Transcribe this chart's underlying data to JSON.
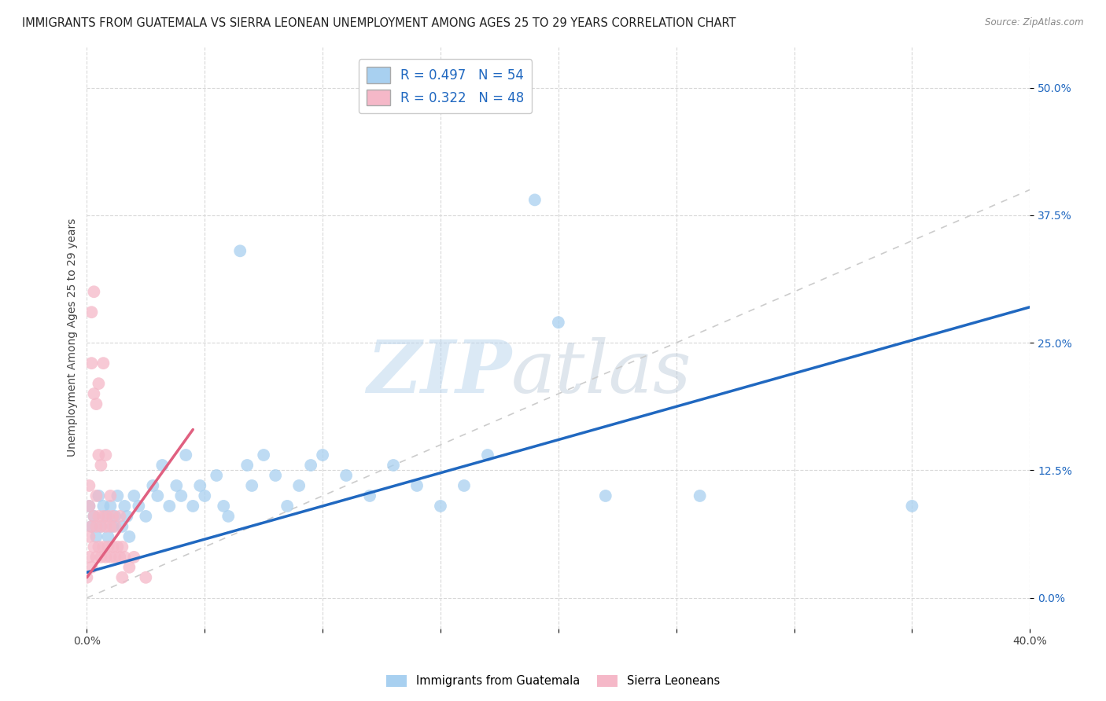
{
  "title": "IMMIGRANTS FROM GUATEMALA VS SIERRA LEONEAN UNEMPLOYMENT AMONG AGES 25 TO 29 YEARS CORRELATION CHART",
  "source": "Source: ZipAtlas.com",
  "ylabel": "Unemployment Among Ages 25 to 29 years",
  "xlim": [
    0.0,
    0.4
  ],
  "ylim": [
    -0.03,
    0.54
  ],
  "yticks": [
    0.0,
    0.125,
    0.25,
    0.375,
    0.5
  ],
  "ytick_labels": [
    "0.0%",
    "12.5%",
    "25.0%",
    "37.5%",
    "50.0%"
  ],
  "xticks": [
    0.0,
    0.05,
    0.1,
    0.15,
    0.2,
    0.25,
    0.3,
    0.35,
    0.4
  ],
  "xtick_labels": [
    "0.0%",
    "",
    "",
    "",
    "",
    "",
    "",
    "",
    "40.0%"
  ],
  "r_blue": 0.497,
  "n_blue": 54,
  "r_pink": 0.322,
  "n_pink": 48,
  "legend_label_blue": "Immigrants from Guatemala",
  "legend_label_pink": "Sierra Leoneans",
  "watermark_zip": "ZIP",
  "watermark_atlas": "atlas",
  "color_blue": "#a8d0f0",
  "color_pink": "#f5b8c8",
  "color_blue_line": "#2068c0",
  "color_pink_line": "#e06080",
  "color_diag": "#cccccc",
  "background_color": "#ffffff",
  "title_fontsize": 10.5,
  "axis_label_fontsize": 10,
  "tick_fontsize": 10,
  "legend_fontsize": 12,
  "scatter_blue": [
    [
      0.001,
      0.09
    ],
    [
      0.002,
      0.07
    ],
    [
      0.003,
      0.08
    ],
    [
      0.004,
      0.06
    ],
    [
      0.005,
      0.1
    ],
    [
      0.006,
      0.07
    ],
    [
      0.007,
      0.09
    ],
    [
      0.008,
      0.08
    ],
    [
      0.009,
      0.06
    ],
    [
      0.01,
      0.09
    ],
    [
      0.011,
      0.07
    ],
    [
      0.012,
      0.08
    ],
    [
      0.013,
      0.1
    ],
    [
      0.015,
      0.07
    ],
    [
      0.016,
      0.09
    ],
    [
      0.017,
      0.08
    ],
    [
      0.018,
      0.06
    ],
    [
      0.02,
      0.1
    ],
    [
      0.022,
      0.09
    ],
    [
      0.025,
      0.08
    ],
    [
      0.028,
      0.11
    ],
    [
      0.03,
      0.1
    ],
    [
      0.032,
      0.13
    ],
    [
      0.035,
      0.09
    ],
    [
      0.038,
      0.11
    ],
    [
      0.04,
      0.1
    ],
    [
      0.042,
      0.14
    ],
    [
      0.045,
      0.09
    ],
    [
      0.048,
      0.11
    ],
    [
      0.05,
      0.1
    ],
    [
      0.055,
      0.12
    ],
    [
      0.058,
      0.09
    ],
    [
      0.06,
      0.08
    ],
    [
      0.065,
      0.34
    ],
    [
      0.068,
      0.13
    ],
    [
      0.07,
      0.11
    ],
    [
      0.075,
      0.14
    ],
    [
      0.08,
      0.12
    ],
    [
      0.085,
      0.09
    ],
    [
      0.09,
      0.11
    ],
    [
      0.095,
      0.13
    ],
    [
      0.1,
      0.14
    ],
    [
      0.11,
      0.12
    ],
    [
      0.12,
      0.1
    ],
    [
      0.13,
      0.13
    ],
    [
      0.14,
      0.11
    ],
    [
      0.15,
      0.09
    ],
    [
      0.16,
      0.11
    ],
    [
      0.17,
      0.14
    ],
    [
      0.19,
      0.39
    ],
    [
      0.2,
      0.27
    ],
    [
      0.22,
      0.1
    ],
    [
      0.26,
      0.1
    ],
    [
      0.35,
      0.09
    ]
  ],
  "scatter_pink": [
    [
      0.0,
      0.02
    ],
    [
      0.001,
      0.04
    ],
    [
      0.001,
      0.06
    ],
    [
      0.001,
      0.09
    ],
    [
      0.001,
      0.11
    ],
    [
      0.002,
      0.03
    ],
    [
      0.002,
      0.07
    ],
    [
      0.002,
      0.23
    ],
    [
      0.002,
      0.28
    ],
    [
      0.003,
      0.05
    ],
    [
      0.003,
      0.08
    ],
    [
      0.003,
      0.2
    ],
    [
      0.003,
      0.3
    ],
    [
      0.004,
      0.04
    ],
    [
      0.004,
      0.07
    ],
    [
      0.004,
      0.1
    ],
    [
      0.004,
      0.19
    ],
    [
      0.005,
      0.05
    ],
    [
      0.005,
      0.08
    ],
    [
      0.005,
      0.14
    ],
    [
      0.005,
      0.21
    ],
    [
      0.006,
      0.04
    ],
    [
      0.006,
      0.07
    ],
    [
      0.006,
      0.13
    ],
    [
      0.007,
      0.05
    ],
    [
      0.007,
      0.08
    ],
    [
      0.007,
      0.23
    ],
    [
      0.008,
      0.04
    ],
    [
      0.008,
      0.07
    ],
    [
      0.008,
      0.14
    ],
    [
      0.009,
      0.05
    ],
    [
      0.009,
      0.08
    ],
    [
      0.01,
      0.04
    ],
    [
      0.01,
      0.07
    ],
    [
      0.01,
      0.1
    ],
    [
      0.011,
      0.05
    ],
    [
      0.011,
      0.08
    ],
    [
      0.012,
      0.04
    ],
    [
      0.012,
      0.07
    ],
    [
      0.013,
      0.05
    ],
    [
      0.014,
      0.04
    ],
    [
      0.014,
      0.08
    ],
    [
      0.015,
      0.05
    ],
    [
      0.015,
      0.02
    ],
    [
      0.016,
      0.04
    ],
    [
      0.018,
      0.03
    ],
    [
      0.02,
      0.04
    ],
    [
      0.025,
      0.02
    ]
  ],
  "blue_line": [
    [
      0.0,
      0.025
    ],
    [
      0.4,
      0.285
    ]
  ],
  "pink_line": [
    [
      0.0,
      0.02
    ],
    [
      0.045,
      0.165
    ]
  ]
}
